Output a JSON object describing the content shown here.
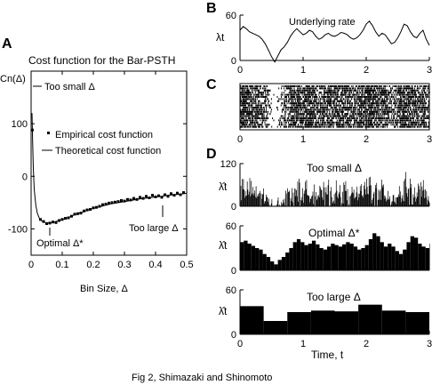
{
  "caption": "Fig 2, Shimazaki and Shinomoto",
  "panels": {
    "A": {
      "label": "A",
      "title": "Cost function for the Bar-PSTH",
      "ylabel": "Cn(Δ)",
      "xlabel": "Bin Size, Δ",
      "legend_empirical": "Empirical cost function",
      "legend_theoretical": "Theoretical cost function",
      "ann_small": "Too small Δ",
      "ann_optimal": "Optimal Δ*",
      "ann_large": "Too large Δ",
      "xticks": [
        "0",
        "0.1",
        "0.2",
        "0.3",
        "0.4",
        "0.5"
      ],
      "yticks": [
        "100",
        "0",
        "-100"
      ]
    },
    "B": {
      "label": "B",
      "ylabel": "λt",
      "annotation": "Underlying rate",
      "xticks": [
        "0",
        "1",
        "2",
        "3"
      ],
      "yticks": [
        "60",
        "0"
      ]
    },
    "C": {
      "label": "C",
      "xticks": [
        "0",
        "1",
        "2",
        "3"
      ]
    },
    "D": {
      "label": "D",
      "ylabel": "λ̂t",
      "sub1_annotation": "Too small Δ",
      "sub1_yticks": [
        "120",
        "0"
      ],
      "sub2_annotation": "Optimal Δ*",
      "sub2_yticks": [
        "60",
        "0"
      ],
      "sub3_annotation": "Too large Δ",
      "sub3_yticks": [
        "60",
        "0"
      ],
      "xticks": [
        "0",
        "1",
        "2",
        "3"
      ],
      "xlabel": "Time, t"
    }
  },
  "chart_data": [
    {
      "panel": "A",
      "type": "line",
      "title": "Cost function for the Bar-PSTH",
      "xlabel": "Bin Size, Δ",
      "ylabel": "Cn(Δ)",
      "xlim": [
        0,
        0.5
      ],
      "ylim": [
        -150,
        200
      ],
      "series": [
        {
          "name": "Theoretical cost function",
          "style": "line",
          "x": [
            0.003,
            0.005,
            0.007,
            0.01,
            0.015,
            0.02,
            0.025,
            0.03,
            0.04,
            0.05,
            0.06,
            0.07,
            0.08,
            0.1,
            0.12,
            0.14,
            0.16,
            0.18,
            0.2,
            0.22,
            0.24,
            0.26,
            0.28,
            0.3,
            0.32,
            0.34,
            0.36,
            0.38,
            0.4,
            0.42,
            0.44,
            0.46,
            0.48,
            0.5
          ],
          "y": [
            120,
            60,
            15,
            -25,
            -55,
            -70,
            -78,
            -83,
            -87,
            -89,
            -89,
            -88,
            -86,
            -82,
            -78,
            -73,
            -69,
            -65,
            -61,
            -58,
            -55,
            -52,
            -50,
            -48,
            -46,
            -44,
            -42,
            -41,
            -39,
            -38,
            -36,
            -35,
            -34,
            -32
          ]
        },
        {
          "name": "Empirical cost function",
          "style": "markers",
          "x": [
            0.004,
            0.03,
            0.04,
            0.05,
            0.06,
            0.07,
            0.08,
            0.09,
            0.1,
            0.11,
            0.12,
            0.13,
            0.14,
            0.15,
            0.16,
            0.17,
            0.18,
            0.19,
            0.2,
            0.21,
            0.22,
            0.23,
            0.24,
            0.25,
            0.26,
            0.27,
            0.28,
            0.29,
            0.3,
            0.31,
            0.32,
            0.33,
            0.34,
            0.35,
            0.36,
            0.37,
            0.38,
            0.39,
            0.4,
            0.41,
            0.42,
            0.43,
            0.44,
            0.45,
            0.46,
            0.47,
            0.48,
            0.49
          ],
          "y": [
            88,
            -82,
            -86,
            -90,
            -89,
            -87,
            -88,
            -84,
            -82,
            -80,
            -79,
            -76,
            -72,
            -71,
            -70,
            -66,
            -64,
            -63,
            -60,
            -59,
            -57,
            -54,
            -53,
            -51,
            -50,
            -49,
            -48,
            -46,
            -47,
            -44,
            -45,
            -42,
            -44,
            -40,
            -42,
            -38,
            -41,
            -36,
            -39,
            -37,
            -40,
            -35,
            -38,
            -33,
            -36,
            -32,
            -35,
            -31
          ]
        }
      ],
      "annotations": [
        {
          "text": "Too small Δ",
          "x": 0.004,
          "y": 88
        },
        {
          "text": "Optimal Δ*",
          "x": 0.06,
          "y": -89
        },
        {
          "text": "Too large Δ",
          "x": 0.42,
          "y": -38
        }
      ]
    },
    {
      "panel": "B",
      "type": "line",
      "annotation": "Underlying rate",
      "ylabel": "λt",
      "xlim": [
        0,
        3
      ],
      "ylim": [
        0,
        60
      ],
      "series": [
        {
          "x": [
            0,
            0.05,
            0.1,
            0.15,
            0.2,
            0.25,
            0.3,
            0.35,
            0.4,
            0.45,
            0.5,
            0.55,
            0.6,
            0.65,
            0.7,
            0.75,
            0.8,
            0.85,
            0.9,
            0.95,
            1.0,
            1.05,
            1.1,
            1.15,
            1.2,
            1.25,
            1.3,
            1.35,
            1.4,
            1.45,
            1.5,
            1.55,
            1.6,
            1.65,
            1.7,
            1.75,
            1.8,
            1.85,
            1.9,
            1.95,
            2.0,
            2.05,
            2.1,
            2.15,
            2.2,
            2.25,
            2.3,
            2.35,
            2.4,
            2.45,
            2.5,
            2.55,
            2.6,
            2.65,
            2.7,
            2.75,
            2.8,
            2.85,
            2.9,
            2.95,
            3.0
          ],
          "y": [
            40,
            45,
            42,
            38,
            36,
            34,
            32,
            28,
            22,
            14,
            5,
            -2,
            6,
            14,
            18,
            24,
            32,
            38,
            42,
            38,
            34,
            36,
            40,
            38,
            32,
            28,
            30,
            34,
            36,
            33,
            32,
            34,
            37,
            36,
            34,
            30,
            28,
            30,
            34,
            40,
            48,
            52,
            46,
            38,
            32,
            36,
            34,
            28,
            22,
            24,
            30,
            38,
            48,
            46,
            38,
            32,
            30,
            36,
            40,
            28,
            20
          ]
        }
      ]
    },
    {
      "panel": "C",
      "type": "scatter",
      "description_trials": 20,
      "xlim": [
        0,
        3
      ]
    },
    {
      "panel": "D1",
      "type": "bar",
      "annotation": "Too small Δ",
      "ylabel": "λ̂t",
      "xlim": [
        0,
        3
      ],
      "ylim": [
        0,
        120
      ],
      "bin_width": 0.01
    },
    {
      "panel": "D2",
      "type": "bar",
      "annotation": "Optimal Δ*",
      "ylabel": "λ̂t",
      "xlim": [
        0,
        3
      ],
      "ylim": [
        0,
        60
      ],
      "bin_width": 0.06,
      "values": [
        38,
        40,
        36,
        33,
        30,
        28,
        22,
        18,
        12,
        8,
        14,
        18,
        24,
        30,
        38,
        42,
        38,
        34,
        36,
        40,
        35,
        30,
        28,
        32,
        36,
        34,
        32,
        35,
        38,
        36,
        32,
        28,
        30,
        34,
        42,
        50,
        46,
        38,
        32,
        36,
        32,
        26,
        22,
        28,
        38,
        46,
        44,
        36,
        32,
        30,
        36,
        40,
        30,
        22
      ]
    },
    {
      "panel": "D3",
      "type": "bar",
      "annotation": "Too large Δ",
      "ylabel": "λ̂t",
      "xlim": [
        0,
        3
      ],
      "ylim": [
        0,
        60
      ],
      "bin_width": 0.375,
      "values": [
        38,
        18,
        30,
        32,
        31,
        40,
        32,
        30
      ]
    }
  ]
}
